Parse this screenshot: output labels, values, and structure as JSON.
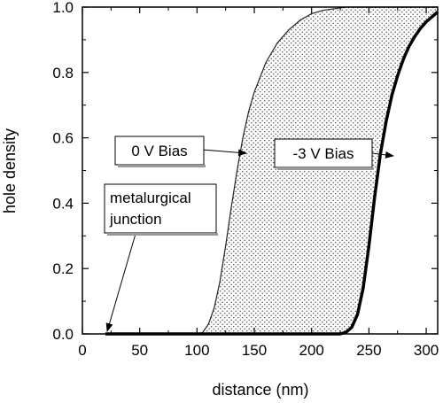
{
  "chart_data": {
    "type": "area",
    "xlabel": "distance (nm)",
    "ylabel": "hole density",
    "xlim": [
      0,
      310
    ],
    "ylim": [
      0,
      1.0
    ],
    "xticks": [
      0,
      50,
      100,
      150,
      200,
      250,
      300
    ],
    "yticks": [
      0.0,
      0.2,
      0.4,
      0.6,
      0.8,
      1.0
    ],
    "xtick_labels": [
      "0",
      "50",
      "100",
      "150",
      "200",
      "250",
      "300"
    ],
    "ytick_labels": [
      "0.0",
      "0.2",
      "0.4",
      "0.6",
      "0.8",
      "1.0"
    ],
    "grid": false,
    "fill": "stippled region between the two curves",
    "series": [
      {
        "name": "0 V Bias",
        "x": [
          20,
          100,
          105,
          110,
          115,
          120,
          125,
          130,
          135,
          140,
          145,
          150,
          160,
          170,
          180,
          190,
          200,
          210,
          220,
          230,
          240,
          250,
          260,
          270,
          280,
          290,
          300,
          310
        ],
        "y": [
          0,
          0,
          0.005,
          0.03,
          0.08,
          0.16,
          0.27,
          0.39,
          0.5,
          0.6,
          0.68,
          0.74,
          0.83,
          0.89,
          0.93,
          0.96,
          0.98,
          0.99,
          0.995,
          1.0,
          1.0,
          1.0,
          1.0,
          1.0,
          1.0,
          1.0,
          1.0,
          1.0
        ]
      },
      {
        "name": "-3 V Bias",
        "x": [
          20,
          225,
          230,
          235,
          240,
          245,
          250,
          255,
          260,
          265,
          270,
          275,
          280,
          285,
          290,
          295,
          300,
          305,
          310
        ],
        "y": [
          0,
          0,
          0.005,
          0.02,
          0.06,
          0.14,
          0.27,
          0.42,
          0.55,
          0.65,
          0.73,
          0.79,
          0.84,
          0.88,
          0.91,
          0.935,
          0.955,
          0.97,
          0.985
        ]
      }
    ],
    "annotations": [
      {
        "label": "0 V Bias",
        "target_x": 142,
        "target_y": 0.56
      },
      {
        "label": "-3 V Bias",
        "target_x": 267,
        "target_y": 0.54
      },
      {
        "label": "metalurgical junction",
        "target_x": 20,
        "target_y": 0.0
      }
    ]
  }
}
